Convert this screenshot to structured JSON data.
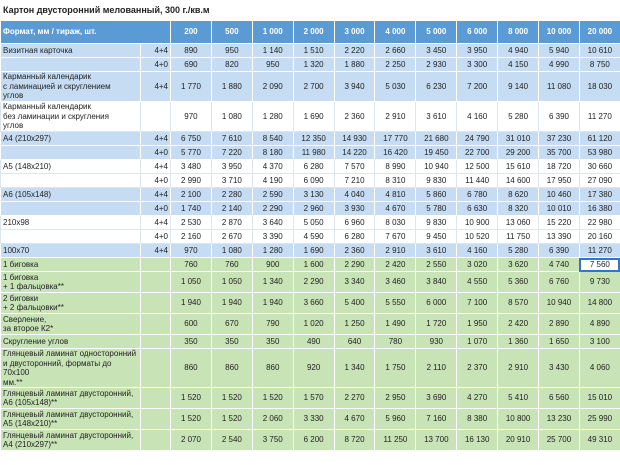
{
  "title": "Картон двусторонний мелованный, 300 г./кв.м",
  "table": {
    "header": {
      "label": "Формат, мм / тираж, шт.",
      "columns": [
        "200",
        "500",
        "1 000",
        "2 000",
        "3 000",
        "4 000",
        "5 000",
        "6 000",
        "8 000",
        "10 000",
        "20 000"
      ]
    },
    "rows": [
      {
        "name": "Визитная карточка",
        "format": "4+4",
        "values": [
          "890",
          "950",
          "1 140",
          "1 510",
          "2 220",
          "2 660",
          "3 450",
          "3 950",
          "4 940",
          "5 940",
          "10 610"
        ]
      },
      {
        "name": null,
        "format": "4+0",
        "values": [
          "690",
          "820",
          "950",
          "1 320",
          "1 880",
          "2 250",
          "2 930",
          "3 300",
          "4 150",
          "4 990",
          "8 750"
        ]
      },
      {
        "name": "Карманный календарик\nс ламинацией и скруглением\nуглов",
        "format": "4+4",
        "values": [
          "1 770",
          "1 880",
          "2 090",
          "2 700",
          "3 940",
          "5 030",
          "6 230",
          "7 200",
          "9 140",
          "11 080",
          "18 030"
        ]
      },
      {
        "name": "Карманный календарик\nбез ламинации и скругления\nуглов",
        "format": null,
        "values": [
          "970",
          "1 080",
          "1 280",
          "1 690",
          "2 360",
          "2 910",
          "3 610",
          "4 160",
          "5 280",
          "6 390",
          "11 270"
        ]
      },
      {
        "name": "А4 (210х297)",
        "format": "4+4",
        "values": [
          "6 750",
          "7 610",
          "8 540",
          "12 350",
          "14 930",
          "17 770",
          "21 680",
          "24 790",
          "31 010",
          "37 230",
          "61 120"
        ]
      },
      {
        "name": null,
        "format": "4+0",
        "values": [
          "5 770",
          "7 220",
          "8 180",
          "11 980",
          "14 220",
          "16 420",
          "19 450",
          "22 700",
          "29 200",
          "35 700",
          "53 980"
        ]
      },
      {
        "name": "А5 (148х210)",
        "format": "4+4",
        "values": [
          "3 480",
          "3 950",
          "4 370",
          "6 280",
          "7 570",
          "8 990",
          "10 940",
          "12 500",
          "15 610",
          "18 720",
          "30 660"
        ]
      },
      {
        "name": null,
        "format": "4+0",
        "values": [
          "2 990",
          "3 710",
          "4 190",
          "6 090",
          "7 210",
          "8 310",
          "9 830",
          "11 440",
          "14 600",
          "17 950",
          "27 090"
        ]
      },
      {
        "name": "А6 (105х148)",
        "format": "4+4",
        "values": [
          "2 100",
          "2 280",
          "2 590",
          "3 130",
          "4 040",
          "4 810",
          "5 860",
          "6 780",
          "8 620",
          "10 460",
          "17 380"
        ]
      },
      {
        "name": null,
        "format": "4+0",
        "values": [
          "1 740",
          "2 140",
          "2 290",
          "2 960",
          "3 930",
          "4 670",
          "5 780",
          "6 630",
          "8 320",
          "10 010",
          "16 380"
        ]
      },
      {
        "name": "210х98",
        "format": "4+4",
        "values": [
          "2 530",
          "2 870",
          "3 640",
          "5 050",
          "6 960",
          "8 030",
          "9 830",
          "10 900",
          "13 060",
          "15 220",
          "22 980"
        ]
      },
      {
        "name": null,
        "format": "4+0",
        "values": [
          "2 160",
          "2 670",
          "3 390",
          "4 590",
          "6 280",
          "7 670",
          "9 450",
          "10 520",
          "11 750",
          "13 390",
          "20 160"
        ]
      },
      {
        "name": "100х70",
        "format": "4+4",
        "values": [
          "970",
          "1 080",
          "1 280",
          "1 690",
          "2 360",
          "2 910",
          "3 610",
          "4 160",
          "5 280",
          "6 390",
          "11 270"
        ]
      },
      {
        "name": "1 биговка",
        "format": null,
        "values": [
          "760",
          "760",
          "900",
          "1 600",
          "2 290",
          "2 420",
          "2 550",
          "3 020",
          "3 620",
          "4 740",
          "7 560"
        ]
      },
      {
        "name": "1 биговка\n+ 1 фальцовка**",
        "format": null,
        "values": [
          "1 050",
          "1 050",
          "1 340",
          "2 290",
          "3 340",
          "3 460",
          "3 840",
          "4 550",
          "5 360",
          "6 760",
          "9 730"
        ]
      },
      {
        "name": "2 биговки\n+ 2 фальцовки**",
        "format": null,
        "values": [
          "1 940",
          "1 940",
          "1 940",
          "3 660",
          "5 400",
          "5 550",
          "6 000",
          "7 100",
          "8 570",
          "10 940",
          "14 800"
        ]
      },
      {
        "name": "Сверление,\nза второе К2*",
        "format": null,
        "values": [
          "600",
          "670",
          "790",
          "1 020",
          "1 250",
          "1 490",
          "1 720",
          "1 950",
          "2 420",
          "2 890",
          "4 890"
        ]
      },
      {
        "name": "Скругление углов",
        "format": null,
        "values": [
          "350",
          "350",
          "350",
          "490",
          "640",
          "780",
          "930",
          "1 070",
          "1 360",
          "1 650",
          "3 100"
        ]
      },
      {
        "name": "Глянцевый ламинат односторонний\nи двусторонний, форматы до 70х100\nмм.**",
        "format": null,
        "values": [
          "860",
          "860",
          "860",
          "920",
          "1 340",
          "1 750",
          "2 110",
          "2 370",
          "2 910",
          "3 430",
          "4 060"
        ]
      },
      {
        "name": "Глянцевый ламинат двусторонний,\nА6 (105х148)**",
        "format": null,
        "values": [
          "1 520",
          "1 520",
          "1 520",
          "1 570",
          "2 270",
          "2 950",
          "3 690",
          "4 270",
          "5 410",
          "6 560",
          "15 010"
        ]
      },
      {
        "name": "Глянцевый ламинат двусторонний,\nА5 (148х210)**",
        "format": null,
        "values": [
          "1 520",
          "1 520",
          "2 060",
          "3 330",
          "4 670",
          "5 960",
          "7 160",
          "8 380",
          "10 800",
          "13 230",
          "25 990"
        ]
      },
      {
        "name": "Глянцевый ламинат двусторонний,\nА4 (210х297)**",
        "format": null,
        "values": [
          "2 070",
          "2 540",
          "3 750",
          "6 200",
          "8 720",
          "11 250",
          "13 700",
          "16 130",
          "20 910",
          "25 700",
          "49 310"
        ]
      }
    ]
  }
}
